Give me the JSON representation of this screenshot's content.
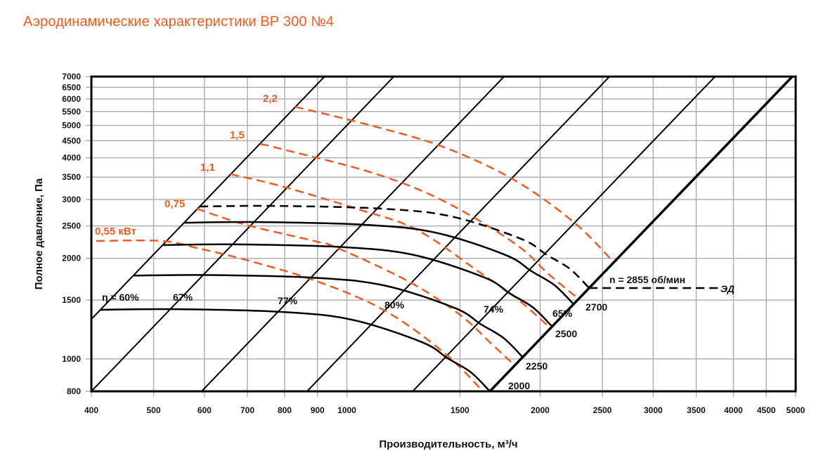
{
  "title": "Аэродинамические характеристики ВР 300 №4",
  "colors": {
    "accent": "#f05a1e",
    "grid": "#b0b0b0",
    "line": "#000000"
  },
  "chart_data": {
    "type": "line",
    "title": "Аэродинамические характеристики ВР 300 №4",
    "xlabel": "Производительность, м³/ч",
    "ylabel": "Полное давление, Па",
    "xscale": "log",
    "yscale": "log",
    "xlim": [
      400,
      5000
    ],
    "ylim": [
      800,
      7000
    ],
    "grid": true,
    "xticks": [
      400,
      500,
      600,
      700,
      800,
      900,
      1000,
      1500,
      2000,
      2500,
      3000,
      3500,
      4000,
      4500,
      5000
    ],
    "yticks": [
      800,
      1000,
      1500,
      2000,
      2500,
      3000,
      3500,
      4000,
      4500,
      5000,
      5500,
      6000,
      6500,
      7000
    ],
    "speed_curves": [
      {
        "name": "2000",
        "label": "2000",
        "points": [
          [
            413,
            1403
          ],
          [
            541,
            1409
          ],
          [
            790,
            1383
          ],
          [
            1017,
            1311
          ],
          [
            1308,
            1123
          ],
          [
            1436,
            1004
          ],
          [
            1560,
            912
          ],
          [
            1670,
            800
          ]
        ]
      },
      {
        "name": "2250",
        "label": "2250",
        "points": [
          [
            465,
            1776
          ],
          [
            609,
            1783
          ],
          [
            889,
            1750
          ],
          [
            1144,
            1659
          ],
          [
            1472,
            1421
          ],
          [
            1616,
            1271
          ],
          [
            1755,
            1154
          ],
          [
            1879,
            1012
          ]
        ]
      },
      {
        "name": "2500",
        "label": "2500",
        "points": [
          [
            516,
            2192
          ],
          [
            676,
            2202
          ],
          [
            988,
            2161
          ],
          [
            1271,
            2048
          ],
          [
            1635,
            1755
          ],
          [
            1795,
            1569
          ],
          [
            1950,
            1425
          ],
          [
            2088,
            1250
          ]
        ]
      },
      {
        "name": "2700",
        "label": "2700",
        "points": [
          [
            558,
            2557
          ],
          [
            730,
            2568
          ],
          [
            1067,
            2521
          ],
          [
            1373,
            2389
          ],
          [
            1766,
            2047
          ],
          [
            1939,
            1830
          ],
          [
            2106,
            1662
          ],
          [
            2255,
            1458
          ]
        ]
      }
    ],
    "motor_curve": {
      "name": "2855",
      "label": "n = 2855 об/мин",
      "motor_label": "ЭД",
      "points": [
        [
          590,
          2859
        ],
        [
          772,
          2871
        ],
        [
          1128,
          2818
        ],
        [
          1452,
          2672
        ],
        [
          1867,
          2288
        ],
        [
          2050,
          2046
        ],
        [
          2227,
          1858
        ],
        [
          2384,
          1630
        ]
      ],
      "motor_line_end_q": 3800
    },
    "power_curves": [
      {
        "name": "0.55",
        "label": "0,55 кВт",
        "points": [
          [
            407,
            2255
          ],
          [
            515,
            2255
          ],
          [
            584,
            2148
          ],
          [
            696,
            1979
          ],
          [
            896,
            1711
          ],
          [
            1145,
            1396
          ],
          [
            1421,
            1039
          ],
          [
            1629,
            800
          ]
        ]
      },
      {
        "name": "0.75",
        "label": "0,75",
        "points": [
          [
            584,
            2817
          ],
          [
            696,
            2520
          ],
          [
            889,
            2255
          ],
          [
            967,
            2148
          ],
          [
            1244,
            1711
          ],
          [
            1495,
            1363
          ],
          [
            1683,
            1106
          ],
          [
            1815,
            966
          ]
        ]
      },
      {
        "name": "1.1",
        "label": "1,1",
        "points": [
          [
            659,
            3572
          ],
          [
            790,
            3290
          ],
          [
            1043,
            2803
          ],
          [
            1285,
            2436
          ],
          [
            1612,
            1813
          ],
          [
            1829,
            1531
          ],
          [
            2075,
            1237
          ]
        ]
      },
      {
        "name": "1.5",
        "label": "1,5",
        "points": [
          [
            733,
            4399
          ],
          [
            790,
            4252
          ],
          [
            1105,
            3589
          ],
          [
            1421,
            2957
          ],
          [
            1829,
            2211
          ],
          [
            2060,
            1796
          ],
          [
            2278,
            1531
          ]
        ]
      },
      {
        "name": "2.2",
        "label": "2,2",
        "points": [
          [
            831,
            5685
          ],
          [
            1105,
            4964
          ],
          [
            1421,
            4293
          ],
          [
            1829,
            3419
          ],
          [
            2261,
            2557
          ],
          [
            2584,
            1979
          ]
        ]
      }
    ],
    "efficiency_lines": [
      {
        "label": "η = 60%",
        "q_at_800": 312
      },
      {
        "label": "67%",
        "q_at_800": 400
      },
      {
        "label": "77%",
        "q_at_800": 594
      },
      {
        "label": "80%",
        "q_at_800": 867
      },
      {
        "label": "74%",
        "q_at_800": 1266
      },
      {
        "label": "65%",
        "q_at_800": 1670,
        "boundary": true
      }
    ]
  }
}
